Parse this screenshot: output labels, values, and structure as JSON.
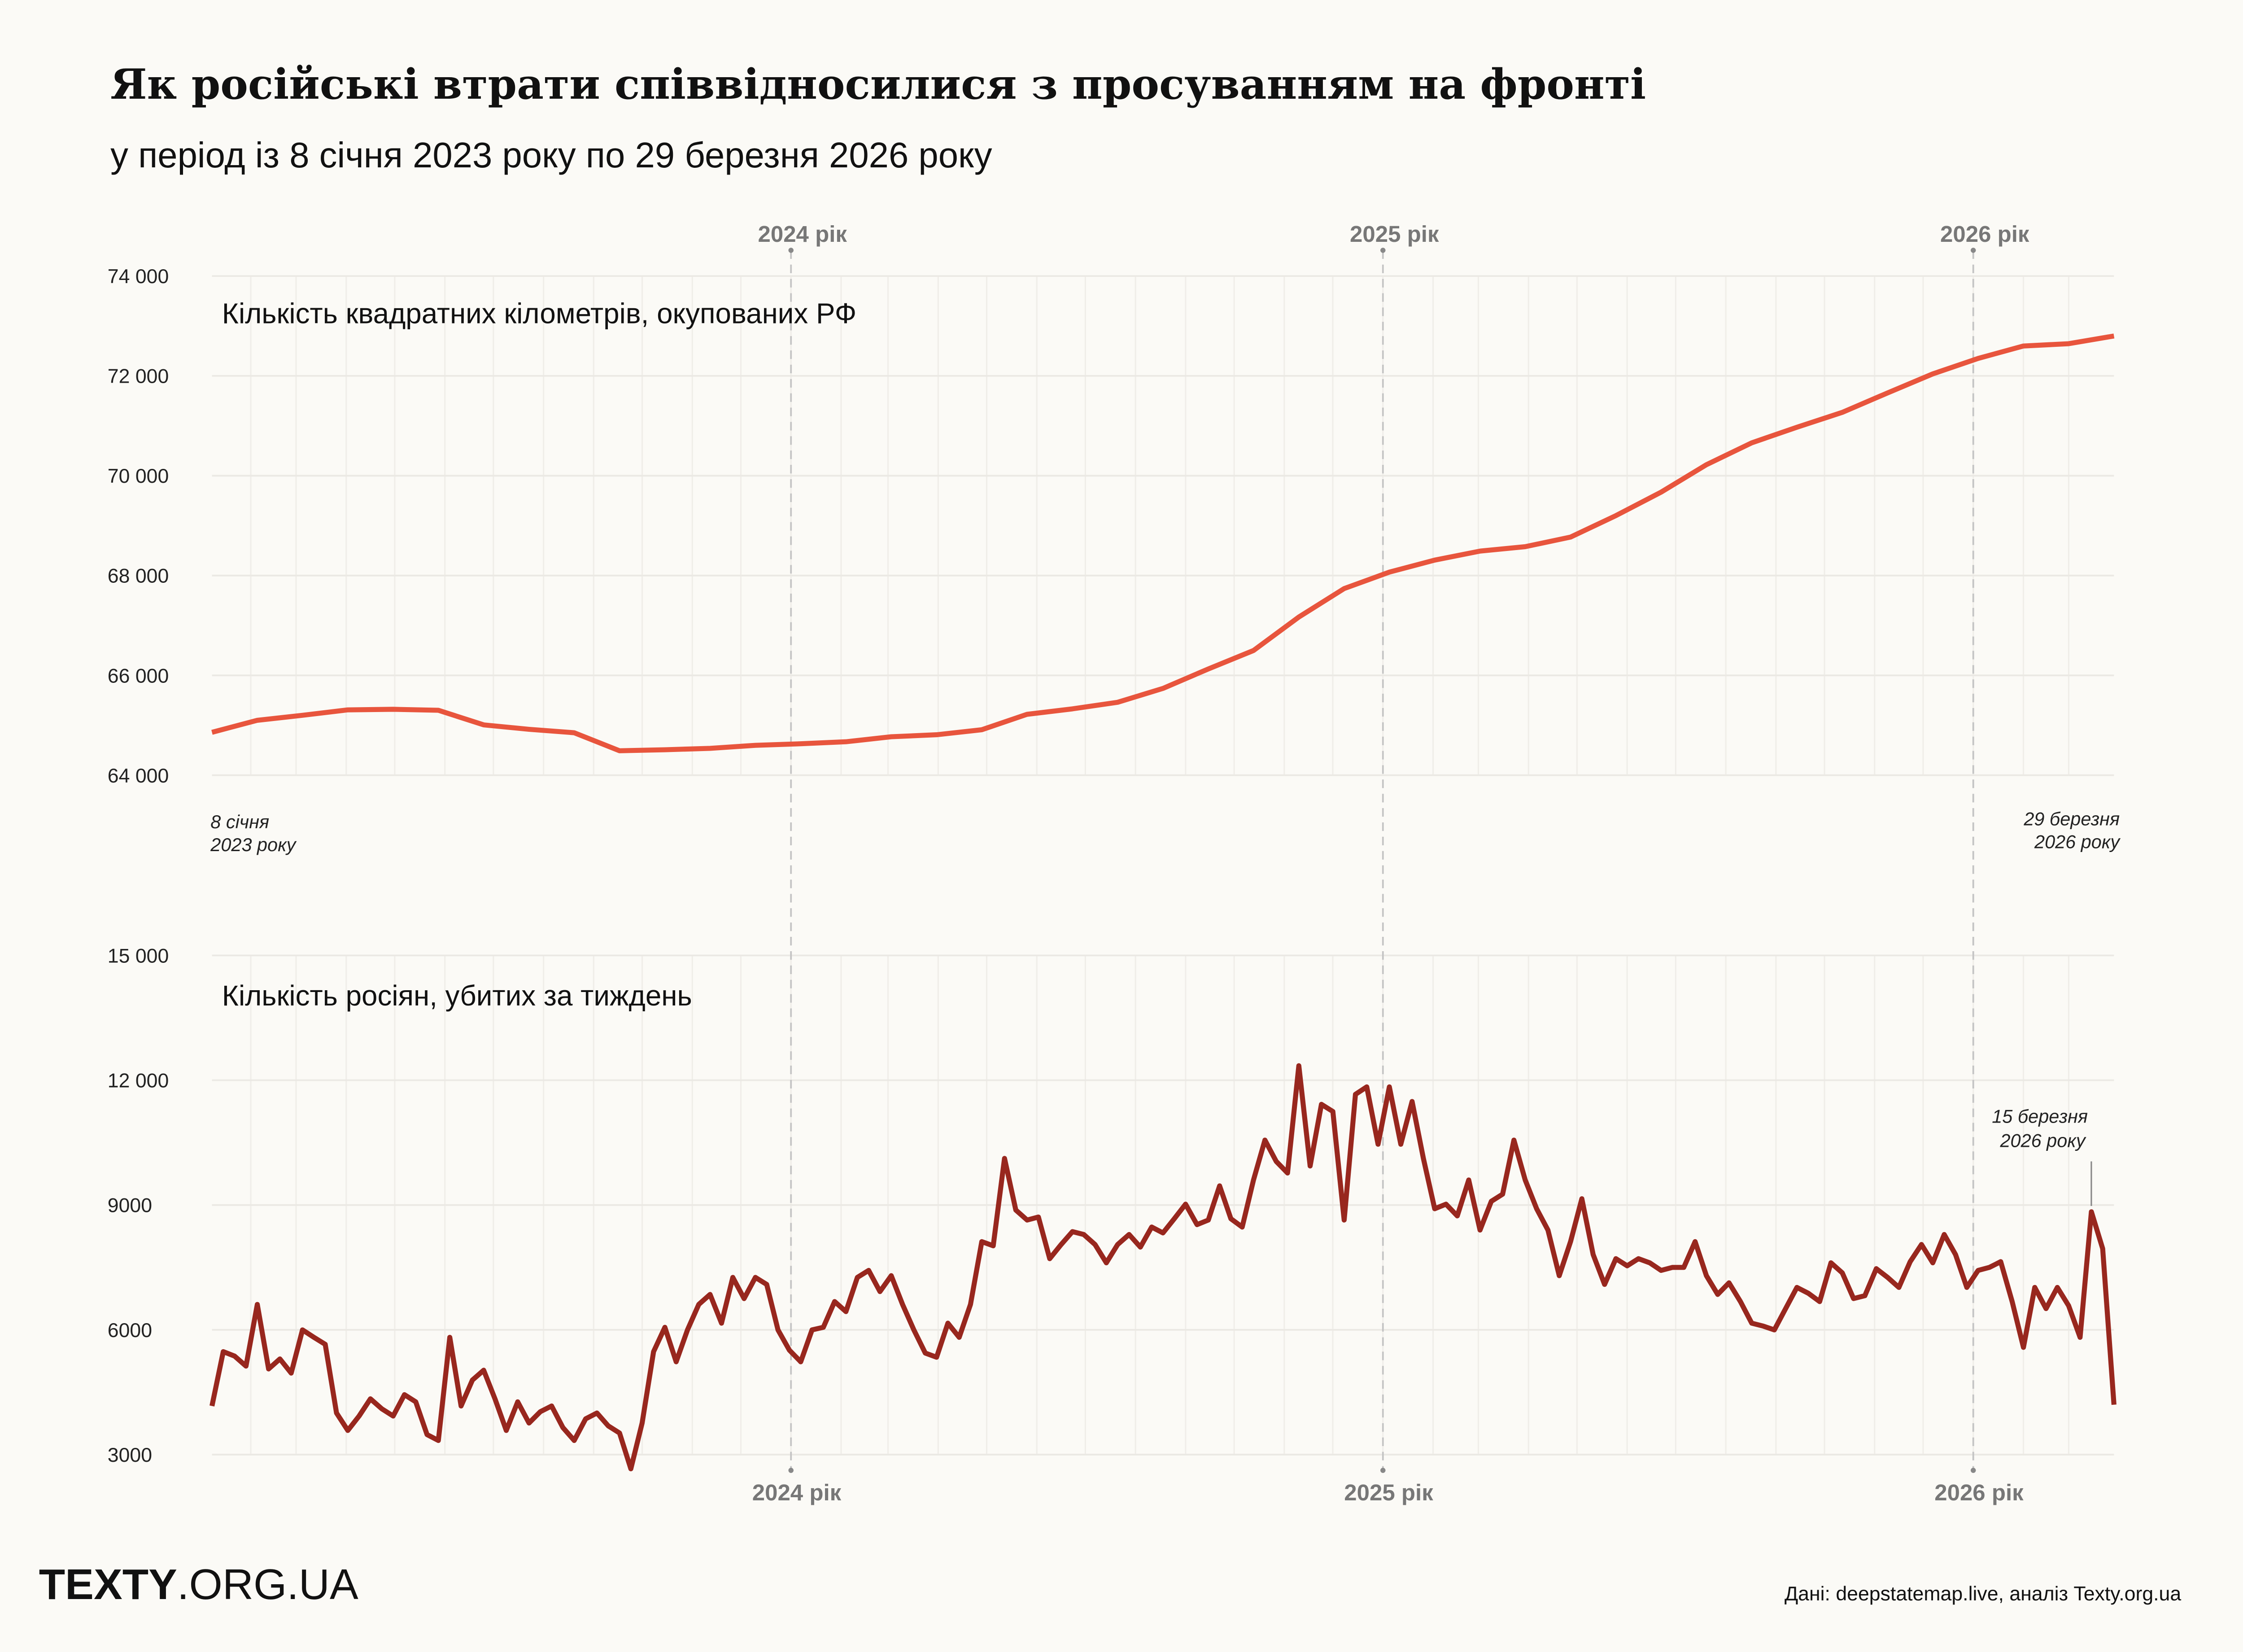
{
  "title": "Як російські втрати співвідносилися з просуванням на фронті",
  "subtitle": "у період із 8 січня 2023 року по 29 березня 2026 року",
  "colors": {
    "background": "#fbfaf6",
    "territory": "#e8553d",
    "losses": "#98271e",
    "grid": "#ebe9e4",
    "year_line": "#c4c4c4"
  },
  "year_labels": [
    "2024 рік",
    "2025 рік",
    "2026 рік"
  ],
  "chart_data": [
    {
      "type": "line",
      "label": "Кількість квадратних кілометрів, окупованих РФ",
      "x_start": "2023-01-08",
      "x_end": "2026-03-29",
      "x_interval": "4 weeks",
      "ylim": [
        64000,
        74000
      ],
      "yticks": [
        "64 000",
        "66 000",
        "68 000",
        "70 000",
        "72 000",
        "74 000"
      ],
      "grid": true,
      "start_note": [
        "8 січня",
        "2023 року"
      ],
      "end_note": [
        "29 березня",
        "2026 року"
      ],
      "values": [
        64860,
        65100,
        65200,
        65310,
        65320,
        65300,
        65010,
        64920,
        64850,
        64490,
        64510,
        64540,
        64600,
        64630,
        64670,
        64770,
        64810,
        64910,
        65220,
        65330,
        65460,
        65740,
        66130,
        66500,
        67170,
        67740,
        68070,
        68310,
        68490,
        68580,
        68770,
        69200,
        69670,
        70220,
        70660,
        70970,
        71270,
        71660,
        72040,
        72350,
        72600,
        72645,
        72800
      ]
    },
    {
      "type": "line",
      "label": "Кількість росіян, убитих за тиждень",
      "x_start": "2023-01-08",
      "x_end": "2026-03-29",
      "x_interval": "1 week",
      "ylim": [
        3000,
        15000
      ],
      "yticks": [
        "3000",
        "6000",
        "9000",
        "12 000",
        "15 000"
      ],
      "grid": true,
      "annotation": {
        "lines": [
          "15 березня",
          "2026 року"
        ],
        "date": "2026-03-15",
        "value": 8840
      },
      "values": [
        4170,
        5475,
        5370,
        5130,
        6610,
        5060,
        5300,
        4960,
        6000,
        5820,
        5650,
        4000,
        3580,
        3930,
        4340,
        4100,
        3930,
        4440,
        4270,
        3480,
        3340,
        5820,
        4170,
        4790,
        5030,
        4340,
        3580,
        4270,
        3760,
        4030,
        4170,
        3650,
        3340,
        3860,
        4000,
        3690,
        3520,
        2660,
        3760,
        5475,
        6060,
        5230,
        6000,
        6610,
        6850,
        6160,
        7260,
        6750,
        7260,
        7090,
        6000,
        5510,
        5230,
        6000,
        6060,
        6680,
        6440,
        7260,
        7430,
        6920,
        7300,
        6610,
        6000,
        5440,
        5340,
        6160,
        5820,
        6610,
        8120,
        8020,
        10120,
        8880,
        8640,
        8710,
        7710,
        8050,
        8360,
        8290,
        8050,
        7610,
        8050,
        8290,
        7990,
        8470,
        8330,
        8670,
        9020,
        8530,
        8640,
        9460,
        8670,
        8470,
        9600,
        10560,
        10050,
        9770,
        12350,
        9940,
        11420,
        11250,
        8640,
        11660,
        11840,
        10460,
        11840,
        10460,
        11490,
        10120,
        8910,
        9020,
        8740,
        9600,
        8400,
        9090,
        9260,
        10560,
        9600,
        8910,
        8400,
        7300,
        8120,
        9150,
        7810,
        7090,
        7710,
        7540,
        7710,
        7610,
        7430,
        7500,
        7500,
        8120,
        7300,
        6850,
        7130,
        6680,
        6160,
        6090,
        6000,
        6510,
        7020,
        6880,
        6680,
        7610,
        7370,
        6750,
        6820,
        7470,
        7260,
        7020,
        7640,
        8050,
        7610,
        8290,
        7810,
        7020,
        7430,
        7500,
        7640,
        6680,
        5580,
        7020,
        6510,
        7020,
        6580,
        5820,
        8840,
        7950,
        4200
      ]
    }
  ],
  "footer": {
    "logo_bold": "TEXTY",
    "logo_light": ".ORG.UA",
    "source": "Дані: deepstatemap.live, аналіз Texty.org.ua"
  }
}
